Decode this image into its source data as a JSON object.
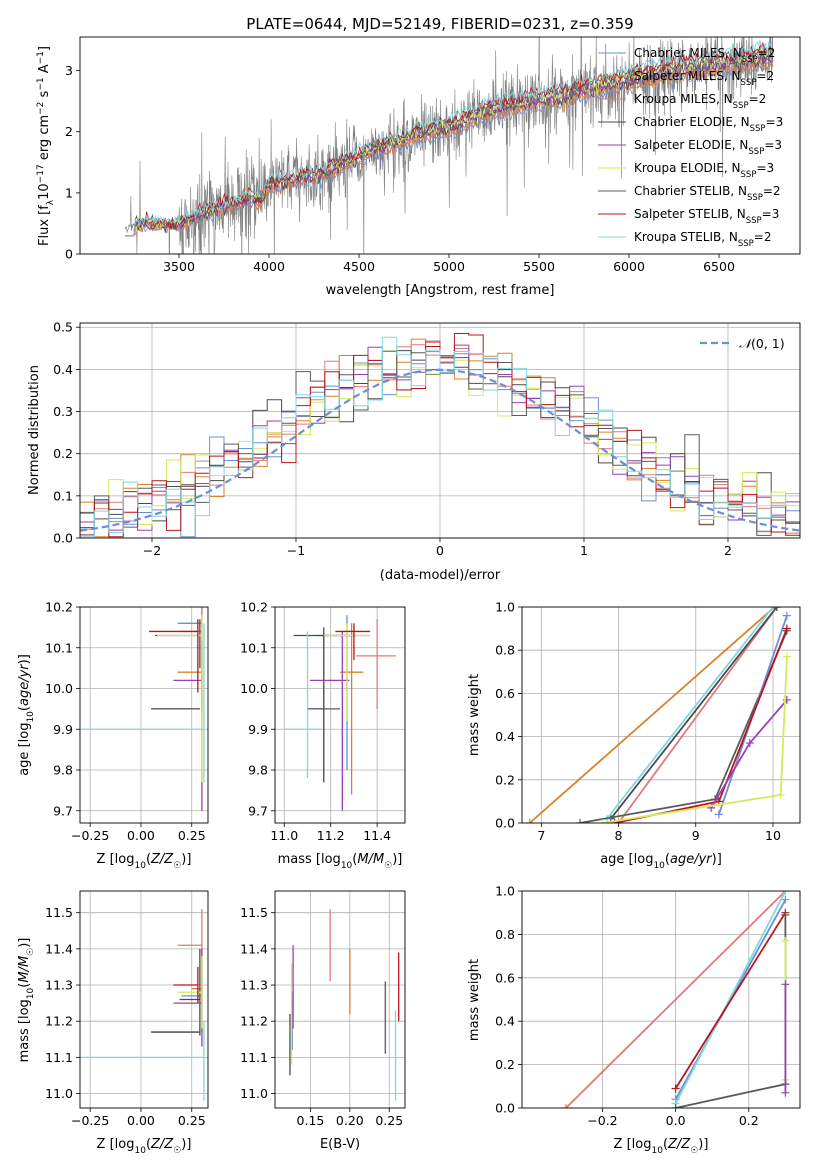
{
  "figure_title": "PLATE=0644, MJD=52149, FIBERID=0231, z=0.359",
  "colors": {
    "cm": "#6b8fd6",
    "sm": "#d9822b",
    "km": "#e07a7a",
    "ce": "#4b4b4b",
    "se": "#9b3fb6",
    "ke": "#d4ea56",
    "cs": "#5a5a5a",
    "ss": "#b8141d",
    "ks": "#7fd8e0",
    "gauss": "#6a8fd8",
    "grid": "#b0b0b0",
    "spectrum": "#7f7f7f"
  },
  "chart_data": [
    {
      "type": "line",
      "panel": "spectrum",
      "xlabel": "wavelength [Angstrom, rest frame]",
      "ylabel": "Flux [f_λ10^{-17} erg cm^{-2} s^{-1} A^{-1}]",
      "xlim": [
        2950,
        6950
      ],
      "ylim": [
        0,
        3.55
      ],
      "xticks": [
        3500,
        4000,
        4500,
        5000,
        5500,
        6000,
        6500
      ],
      "yticks": [
        0,
        1,
        2,
        3
      ],
      "legend_loc": "upper right",
      "legend": [
        {
          "key": "cm",
          "label": "Chabrier MILES, N",
          "sub": "SSP",
          "tail": "=2"
        },
        {
          "key": "sm",
          "label": "Salpeter MILES, N",
          "sub": "SSP",
          "tail": "=2"
        },
        {
          "key": "km",
          "label": "Kroupa MILES, N",
          "sub": "SSP",
          "tail": "=2"
        },
        {
          "key": "ce",
          "label": "Chabrier ELODIE, N",
          "sub": "SSP",
          "tail": "=3"
        },
        {
          "key": "se",
          "label": "Salpeter ELODIE, N",
          "sub": "SSP",
          "tail": "=3"
        },
        {
          "key": "ke",
          "label": "Kroupa ELODIE, N",
          "sub": "SSP",
          "tail": "=3"
        },
        {
          "key": "cs",
          "label": "Chabrier STELIB, N",
          "sub": "SSP",
          "tail": "=2"
        },
        {
          "key": "ss",
          "label": "Salpeter STELIB, N",
          "sub": "SSP",
          "tail": "=3"
        },
        {
          "key": "ks",
          "label": "Kroupa STELIB, N",
          "sub": "SSP",
          "tail": "=2"
        }
      ],
      "model_continuum": {
        "x": [
          3200,
          3300,
          3400,
          3500,
          3600,
          3700,
          3800,
          3900,
          3950,
          4000,
          4100,
          4200,
          4300,
          4400,
          4500,
          4600,
          4700,
          4800,
          4900,
          5000,
          5200,
          5400,
          5600,
          5800,
          6000,
          6200,
          6400,
          6600,
          6800
        ],
        "y": [
          0.42,
          0.5,
          0.47,
          0.5,
          0.62,
          0.75,
          0.82,
          0.92,
          0.85,
          1.12,
          1.18,
          1.25,
          1.3,
          1.45,
          1.58,
          1.72,
          1.8,
          1.92,
          2.0,
          2.05,
          2.3,
          2.45,
          2.55,
          2.7,
          2.82,
          2.95,
          3.05,
          3.12,
          3.2
        ]
      }
    },
    {
      "type": "histogram",
      "panel": "residuals",
      "xlabel": "(data-model)/error",
      "ylabel": "Normed distribution",
      "xlim": [
        -2.5,
        2.5
      ],
      "ylim": [
        0,
        0.51
      ],
      "xticks": [
        -2,
        -1,
        0,
        1,
        2
      ],
      "yticks": [
        0.0,
        0.1,
        0.2,
        0.3,
        0.4,
        0.5
      ],
      "curve_label": "N(0,1)",
      "legend_loc": "upper right",
      "series_keys": [
        "cm",
        "sm",
        "km",
        "ce",
        "se",
        "ke",
        "cs",
        "ss",
        "ks"
      ]
    },
    {
      "type": "scatter",
      "panel": "age_vs_Z",
      "xlabel": "Z [log10(Z/Z☉)]",
      "ylabel": "age [log10(age/yr)]",
      "xlim": [
        -0.3,
        0.33
      ],
      "ylim": [
        9.67,
        10.2
      ],
      "xticks": [
        -0.25,
        0.0,
        0.25
      ],
      "yticks": [
        9.7,
        9.8,
        9.9,
        10.0,
        10.1,
        10.2
      ],
      "points": [
        {
          "key": "cm",
          "x": 0.3,
          "xerr_lo": 0.12,
          "xerr_hi": 0.0,
          "y": 10.16,
          "yerr_lo": 0.2,
          "yerr_hi": 0.04
        },
        {
          "key": "sm",
          "x": 0.3,
          "xerr_lo": 0.12,
          "xerr_hi": 0.0,
          "y": 10.04,
          "yerr_lo": 0.1,
          "yerr_hi": 0.06
        },
        {
          "key": "km",
          "x": 0.3,
          "xerr_lo": 0.1,
          "xerr_hi": 0.0,
          "y": 10.14,
          "yerr_lo": 0.1,
          "yerr_hi": 0.06
        },
        {
          "key": "ce",
          "x": 0.29,
          "xerr_lo": 0.22,
          "xerr_hi": 0.0,
          "y": 10.13,
          "yerr_lo": 0.08,
          "yerr_hi": 0.04
        },
        {
          "key": "se",
          "x": 0.3,
          "xerr_lo": 0.14,
          "xerr_hi": 0.0,
          "y": 10.02,
          "yerr_lo": 0.32,
          "yerr_hi": 0.1
        },
        {
          "key": "ke",
          "x": 0.3,
          "xerr_lo": 0.22,
          "xerr_hi": 0.0,
          "y": 10.13,
          "yerr_lo": 0.36,
          "yerr_hi": 0.05
        },
        {
          "key": "cs",
          "x": 0.29,
          "xerr_lo": 0.24,
          "xerr_hi": 0.0,
          "y": 9.95,
          "yerr_lo": 0.0,
          "yerr_hi": 0.0
        },
        {
          "key": "ss",
          "x": 0.28,
          "xerr_lo": 0.24,
          "xerr_hi": 0.0,
          "y": 10.14,
          "yerr_lo": 0.15,
          "yerr_hi": 0.03
        },
        {
          "key": "ks",
          "x": 0.31,
          "xerr_lo": 0.6,
          "xerr_hi": 0.0,
          "y": 9.9,
          "yerr_lo": 0.13,
          "yerr_hi": 0.26
        }
      ]
    },
    {
      "type": "scatter",
      "panel": "age_vs_mass",
      "xlabel": "mass [log10(M/M☉)]",
      "ylabel": "",
      "xlim": [
        10.96,
        11.52
      ],
      "ylim": [
        9.67,
        10.2
      ],
      "xticks": [
        11.0,
        11.2,
        11.4
      ],
      "yticks": [
        9.7,
        9.8,
        9.9,
        10.0,
        10.1,
        10.2
      ],
      "points": [
        {
          "key": "cm",
          "x": 11.27,
          "xerr_lo": 0.13,
          "xerr_hi": 0.1,
          "y": 10.13,
          "yerr_lo": 0.33,
          "yerr_hi": 0.05
        },
        {
          "key": "sm",
          "x": 11.29,
          "xerr_lo": 0.05,
          "xerr_hi": 0.05,
          "y": 10.04,
          "yerr_lo": 0.3,
          "yerr_hi": 0.12
        },
        {
          "key": "km",
          "x": 11.4,
          "xerr_lo": 0.09,
          "xerr_hi": 0.08,
          "y": 10.08,
          "yerr_lo": 0.13,
          "yerr_hi": 0.09
        },
        {
          "key": "ce",
          "x": 11.17,
          "xerr_lo": 0.13,
          "xerr_hi": 0.14,
          "y": 10.13,
          "yerr_lo": 0.36,
          "yerr_hi": 0.02
        },
        {
          "key": "se",
          "x": 11.25,
          "xerr_lo": 0.14,
          "xerr_hi": 0.03,
          "y": 10.02,
          "yerr_lo": 0.32,
          "yerr_hi": 0.12
        },
        {
          "key": "ke",
          "x": 11.27,
          "xerr_lo": 0.1,
          "xerr_hi": 0.1,
          "y": 10.13,
          "yerr_lo": 0.21,
          "yerr_hi": 0.03
        },
        {
          "key": "cs",
          "x": 11.17,
          "xerr_lo": 0.07,
          "xerr_hi": 0.07,
          "y": 9.95,
          "yerr_lo": 0.18,
          "yerr_hi": 0.18
        },
        {
          "key": "ss",
          "x": 11.3,
          "xerr_lo": 0.08,
          "xerr_hi": 0.07,
          "y": 10.14,
          "yerr_lo": 0.07,
          "yerr_hi": 0.02
        },
        {
          "key": "ks",
          "x": 11.1,
          "xerr_lo": 0.1,
          "xerr_hi": 0.06,
          "y": 9.9,
          "yerr_lo": 0.12,
          "yerr_hi": 0.24
        }
      ]
    },
    {
      "type": "line",
      "panel": "massweight_vs_age",
      "xlabel": "age [log10(age/yr)]",
      "ylabel": "mass weight",
      "xlim": [
        6.75,
        10.35
      ],
      "ylim": [
        0,
        1
      ],
      "xticks": [
        7,
        8,
        9,
        10
      ],
      "yticks": [
        0.0,
        0.2,
        0.4,
        0.6,
        0.8,
        1.0
      ],
      "series": [
        {
          "key": "sm",
          "x": [
            6.85,
            10.02
          ],
          "y": [
            0.0,
            1.0
          ]
        },
        {
          "key": "km",
          "x": [
            8.0,
            10.05
          ],
          "y": [
            0.0,
            1.0
          ]
        },
        {
          "key": "ce",
          "x": [
            7.9,
            10.05
          ],
          "y": [
            0.02,
            1.0
          ]
        },
        {
          "key": "ks",
          "x": [
            7.85,
            10.0
          ],
          "y": [
            0.02,
            1.0
          ]
        },
        {
          "key": "cs",
          "x": [
            7.5,
            9.25,
            10.18
          ],
          "y": [
            0.0,
            0.11,
            0.89
          ]
        },
        {
          "key": "cm",
          "x": [
            9.3,
            10.18
          ],
          "y": [
            0.04,
            0.96
          ]
        },
        {
          "key": "ss",
          "x": [
            7.95,
            9.3,
            10.18
          ],
          "y": [
            0.0,
            0.1,
            0.9
          ]
        },
        {
          "key": "se",
          "x": [
            9.2,
            9.7,
            10.18
          ],
          "y": [
            0.07,
            0.37,
            0.57
          ]
        },
        {
          "key": "ke",
          "x": [
            7.8,
            10.1,
            10.18
          ],
          "y": [
            0.0,
            0.13,
            0.77
          ]
        }
      ]
    },
    {
      "type": "scatter",
      "panel": "mass_vs_Z",
      "xlabel": "Z [log10(Z/Z☉)]",
      "ylabel": "mass [log10(M/M☉)]",
      "xlim": [
        -0.3,
        0.33
      ],
      "ylim": [
        10.96,
        11.56
      ],
      "xticks": [
        -0.25,
        0.0,
        0.25
      ],
      "yticks": [
        11.0,
        11.1,
        11.2,
        11.3,
        11.4,
        11.5
      ],
      "points": [
        {
          "key": "cm",
          "x": 0.3,
          "xerr_lo": 0.1,
          "xerr_hi": 0.0,
          "y": 11.27,
          "yerr_lo": 0.1,
          "yerr_hi": 0.1
        },
        {
          "key": "sm",
          "x": 0.3,
          "xerr_lo": 0.05,
          "xerr_hi": 0.0,
          "y": 11.29,
          "yerr_lo": 0.05,
          "yerr_hi": 0.05
        },
        {
          "key": "km",
          "x": 0.3,
          "xerr_lo": 0.12,
          "xerr_hi": 0.0,
          "y": 11.41,
          "yerr_lo": 0.09,
          "yerr_hi": 0.1
        },
        {
          "key": "ce",
          "x": 0.29,
          "xerr_lo": 0.1,
          "xerr_hi": 0.0,
          "y": 11.26,
          "yerr_lo": 0.1,
          "yerr_hi": 0.14
        },
        {
          "key": "se",
          "x": 0.3,
          "xerr_lo": 0.14,
          "xerr_hi": 0.0,
          "y": 11.25,
          "yerr_lo": 0.12,
          "yerr_hi": 0.15
        },
        {
          "key": "ke",
          "x": 0.3,
          "xerr_lo": 0.12,
          "xerr_hi": 0.0,
          "y": 11.28,
          "yerr_lo": 0.1,
          "yerr_hi": 0.1
        },
        {
          "key": "cs",
          "x": 0.29,
          "xerr_lo": 0.24,
          "xerr_hi": 0.0,
          "y": 11.17,
          "yerr_lo": 0.0,
          "yerr_hi": 0.0
        },
        {
          "key": "ss",
          "x": 0.28,
          "xerr_lo": 0.12,
          "xerr_hi": 0.0,
          "y": 11.3,
          "yerr_lo": 0.05,
          "yerr_hi": 0.05
        },
        {
          "key": "ks",
          "x": 0.31,
          "xerr_lo": 0.61,
          "xerr_hi": 0.0,
          "y": 11.1,
          "yerr_lo": 0.12,
          "yerr_hi": 0.1
        }
      ]
    },
    {
      "type": "scatter",
      "panel": "mass_vs_EBV",
      "xlabel": "E(B-V)",
      "ylabel": "",
      "xlim": [
        0.105,
        0.27
      ],
      "ylim": [
        10.96,
        11.56
      ],
      "xticks": [
        0.15,
        0.2,
        0.25
      ],
      "yticks": [
        11.0,
        11.1,
        11.2,
        11.3,
        11.4,
        11.5
      ],
      "points": [
        {
          "key": "cm",
          "x": 0.127,
          "y": 11.2,
          "yerr_lo": 0.08,
          "yerr_hi": 0.08
        },
        {
          "key": "sm",
          "x": 0.2,
          "y": 11.32,
          "yerr_lo": 0.1,
          "yerr_hi": 0.08
        },
        {
          "key": "km",
          "x": 0.175,
          "y": 11.41,
          "yerr_lo": 0.1,
          "yerr_hi": 0.1
        },
        {
          "key": "ce",
          "x": 0.124,
          "y": 11.12,
          "yerr_lo": 0.07,
          "yerr_hi": 0.1
        },
        {
          "key": "se",
          "x": 0.128,
          "y": 11.3,
          "yerr_lo": 0.12,
          "yerr_hi": 0.11
        },
        {
          "key": "ke",
          "x": 0.126,
          "y": 11.22,
          "yerr_lo": 0.14,
          "yerr_hi": 0.14
        },
        {
          "key": "cs",
          "x": 0.245,
          "y": 11.21,
          "yerr_lo": 0.1,
          "yerr_hi": 0.1
        },
        {
          "key": "ss",
          "x": 0.262,
          "y": 11.29,
          "yerr_lo": 0.09,
          "yerr_hi": 0.1
        },
        {
          "key": "ks",
          "x": 0.258,
          "y": 11.1,
          "yerr_lo": 0.12,
          "yerr_hi": 0.13
        }
      ]
    },
    {
      "type": "line",
      "panel": "massweight_vs_Z",
      "xlabel": "Z [log10(Z/Z☉)]",
      "ylabel": "mass weight",
      "xlim": [
        -0.42,
        0.34
      ],
      "ylim": [
        0,
        1
      ],
      "xticks": [
        -0.2,
        0.0,
        0.2
      ],
      "yticks": [
        0.0,
        0.2,
        0.4,
        0.6,
        0.8,
        1.0
      ],
      "series": [
        {
          "key": "km",
          "x": [
            -0.3,
            0.3
          ],
          "y": [
            0.0,
            1.0
          ]
        },
        {
          "key": "cm",
          "x": [
            0.0,
            0.3
          ],
          "y": [
            0.04,
            0.96
          ]
        },
        {
          "key": "ks",
          "x": [
            0.0,
            0.3
          ],
          "y": [
            0.02,
            1.0
          ]
        },
        {
          "key": "ss",
          "x": [
            0.0,
            0.3
          ],
          "y": [
            0.09,
            0.9
          ]
        },
        {
          "key": "cs",
          "x": [
            0.0,
            0.3,
            0.3
          ],
          "y": [
            0.0,
            0.11,
            0.89
          ]
        },
        {
          "key": "ke",
          "x": [
            0.3,
            0.3
          ],
          "y": [
            0.13,
            0.77
          ]
        },
        {
          "key": "se",
          "x": [
            0.3,
            0.3
          ],
          "y": [
            0.07,
            0.57
          ]
        }
      ]
    }
  ]
}
